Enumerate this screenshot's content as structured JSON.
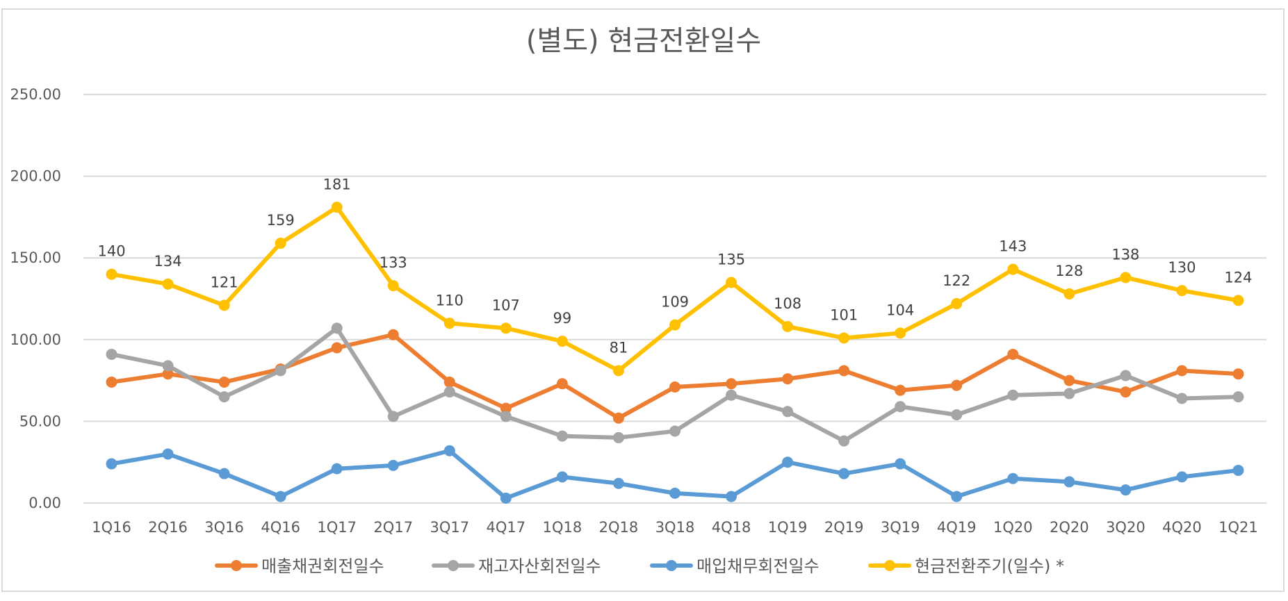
{
  "chart_data": {
    "type": "line",
    "title": "(별도) 현금전환일수",
    "categories": [
      "1Q16",
      "2Q16",
      "3Q16",
      "4Q16",
      "1Q17",
      "2Q17",
      "3Q17",
      "4Q17",
      "1Q18",
      "2Q18",
      "3Q18",
      "4Q18",
      "1Q19",
      "2Q19",
      "3Q19",
      "4Q19",
      "1Q20",
      "2Q20",
      "3Q20",
      "4Q20",
      "1Q21"
    ],
    "ylim": [
      0,
      250
    ],
    "yticks": [
      "0.00",
      "50.00",
      "100.00",
      "150.00",
      "200.00",
      "250.00"
    ],
    "grid": true,
    "legend_position": "bottom",
    "series": [
      {
        "name": "매출채권회전일수",
        "color": "#ED7D31",
        "values": [
          74,
          79,
          74,
          82,
          95,
          103,
          74,
          58,
          73,
          52,
          71,
          73,
          76,
          81,
          69,
          72,
          91,
          75,
          68,
          81,
          79
        ]
      },
      {
        "name": "재고자산회전일수",
        "color": "#A5A5A5",
        "values": [
          91,
          84,
          65,
          81,
          107,
          53,
          68,
          53,
          41,
          40,
          44,
          66,
          56,
          38,
          59,
          54,
          66,
          67,
          78,
          64,
          65
        ]
      },
      {
        "name": "매입채무회전일수",
        "color": "#5B9BD5",
        "values": [
          24,
          30,
          18,
          4,
          21,
          23,
          32,
          3,
          16,
          12,
          6,
          4,
          25,
          18,
          24,
          4,
          15,
          13,
          8,
          16,
          20
        ]
      },
      {
        "name": "현금전환주기(일수) *",
        "color": "#FFC000",
        "labels": true,
        "values": [
          140,
          134,
          121,
          159,
          181,
          133,
          110,
          107,
          99,
          81,
          109,
          135,
          108,
          101,
          104,
          122,
          143,
          128,
          138,
          130,
          124
        ]
      }
    ]
  }
}
